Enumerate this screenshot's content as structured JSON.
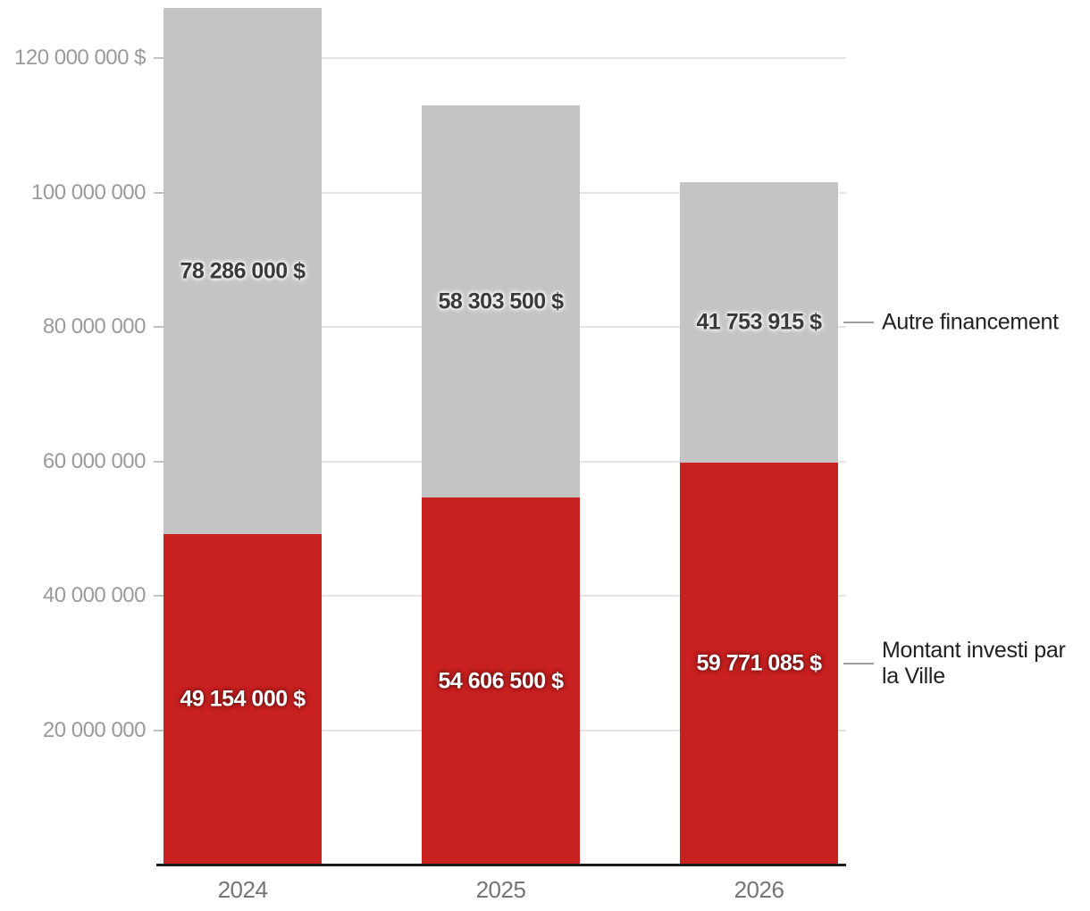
{
  "chart_data": {
    "type": "bar",
    "stacked": true,
    "title": "",
    "xlabel": "",
    "ylabel": "",
    "categories": [
      "2024",
      "2025",
      "2026"
    ],
    "series": [
      {
        "name": "Montant investi par la Ville",
        "color": "#c92020",
        "values": [
          49154000,
          54606500,
          59771085
        ],
        "value_labels": [
          "49 154 000 $",
          "54 606 500 $",
          "59 771 085 $"
        ],
        "value_label_color": "#ffffff",
        "value_label_halo": "dark"
      },
      {
        "name": "Autre financement",
        "color": "#c4c4c4",
        "values": [
          78286000,
          58303500,
          41753915
        ],
        "value_labels": [
          "78 286 000 $",
          "58 303 500 $",
          "41 753 915 $"
        ],
        "value_label_color": "#3a3a3a",
        "value_label_halo": "light"
      }
    ],
    "y_axis": {
      "min": 0,
      "grid": true,
      "ticks": [
        {
          "value": 20000000,
          "label": "20 000 000"
        },
        {
          "value": 40000000,
          "label": "40 000 000"
        },
        {
          "value": 60000000,
          "label": "60 000 000"
        },
        {
          "value": 80000000,
          "label": "80 000 000"
        },
        {
          "value": 100000000,
          "label": "100 000 000"
        },
        {
          "value": 120000000,
          "label": "120 000 000 $"
        }
      ]
    },
    "legend": {
      "position": "labeled-right",
      "items": [
        "Autre financement",
        "Montant investi par la Ville"
      ]
    },
    "colors": {
      "background": "#ffffff",
      "grid": "#e4e4e4",
      "tick": "#c2c2c2",
      "axis_line": "#1b1b1b",
      "y_label_text": "#9a9a9a",
      "x_label_text": "#757575",
      "legend_text": "#212121",
      "legend_connector": "#9e9e9e"
    }
  }
}
